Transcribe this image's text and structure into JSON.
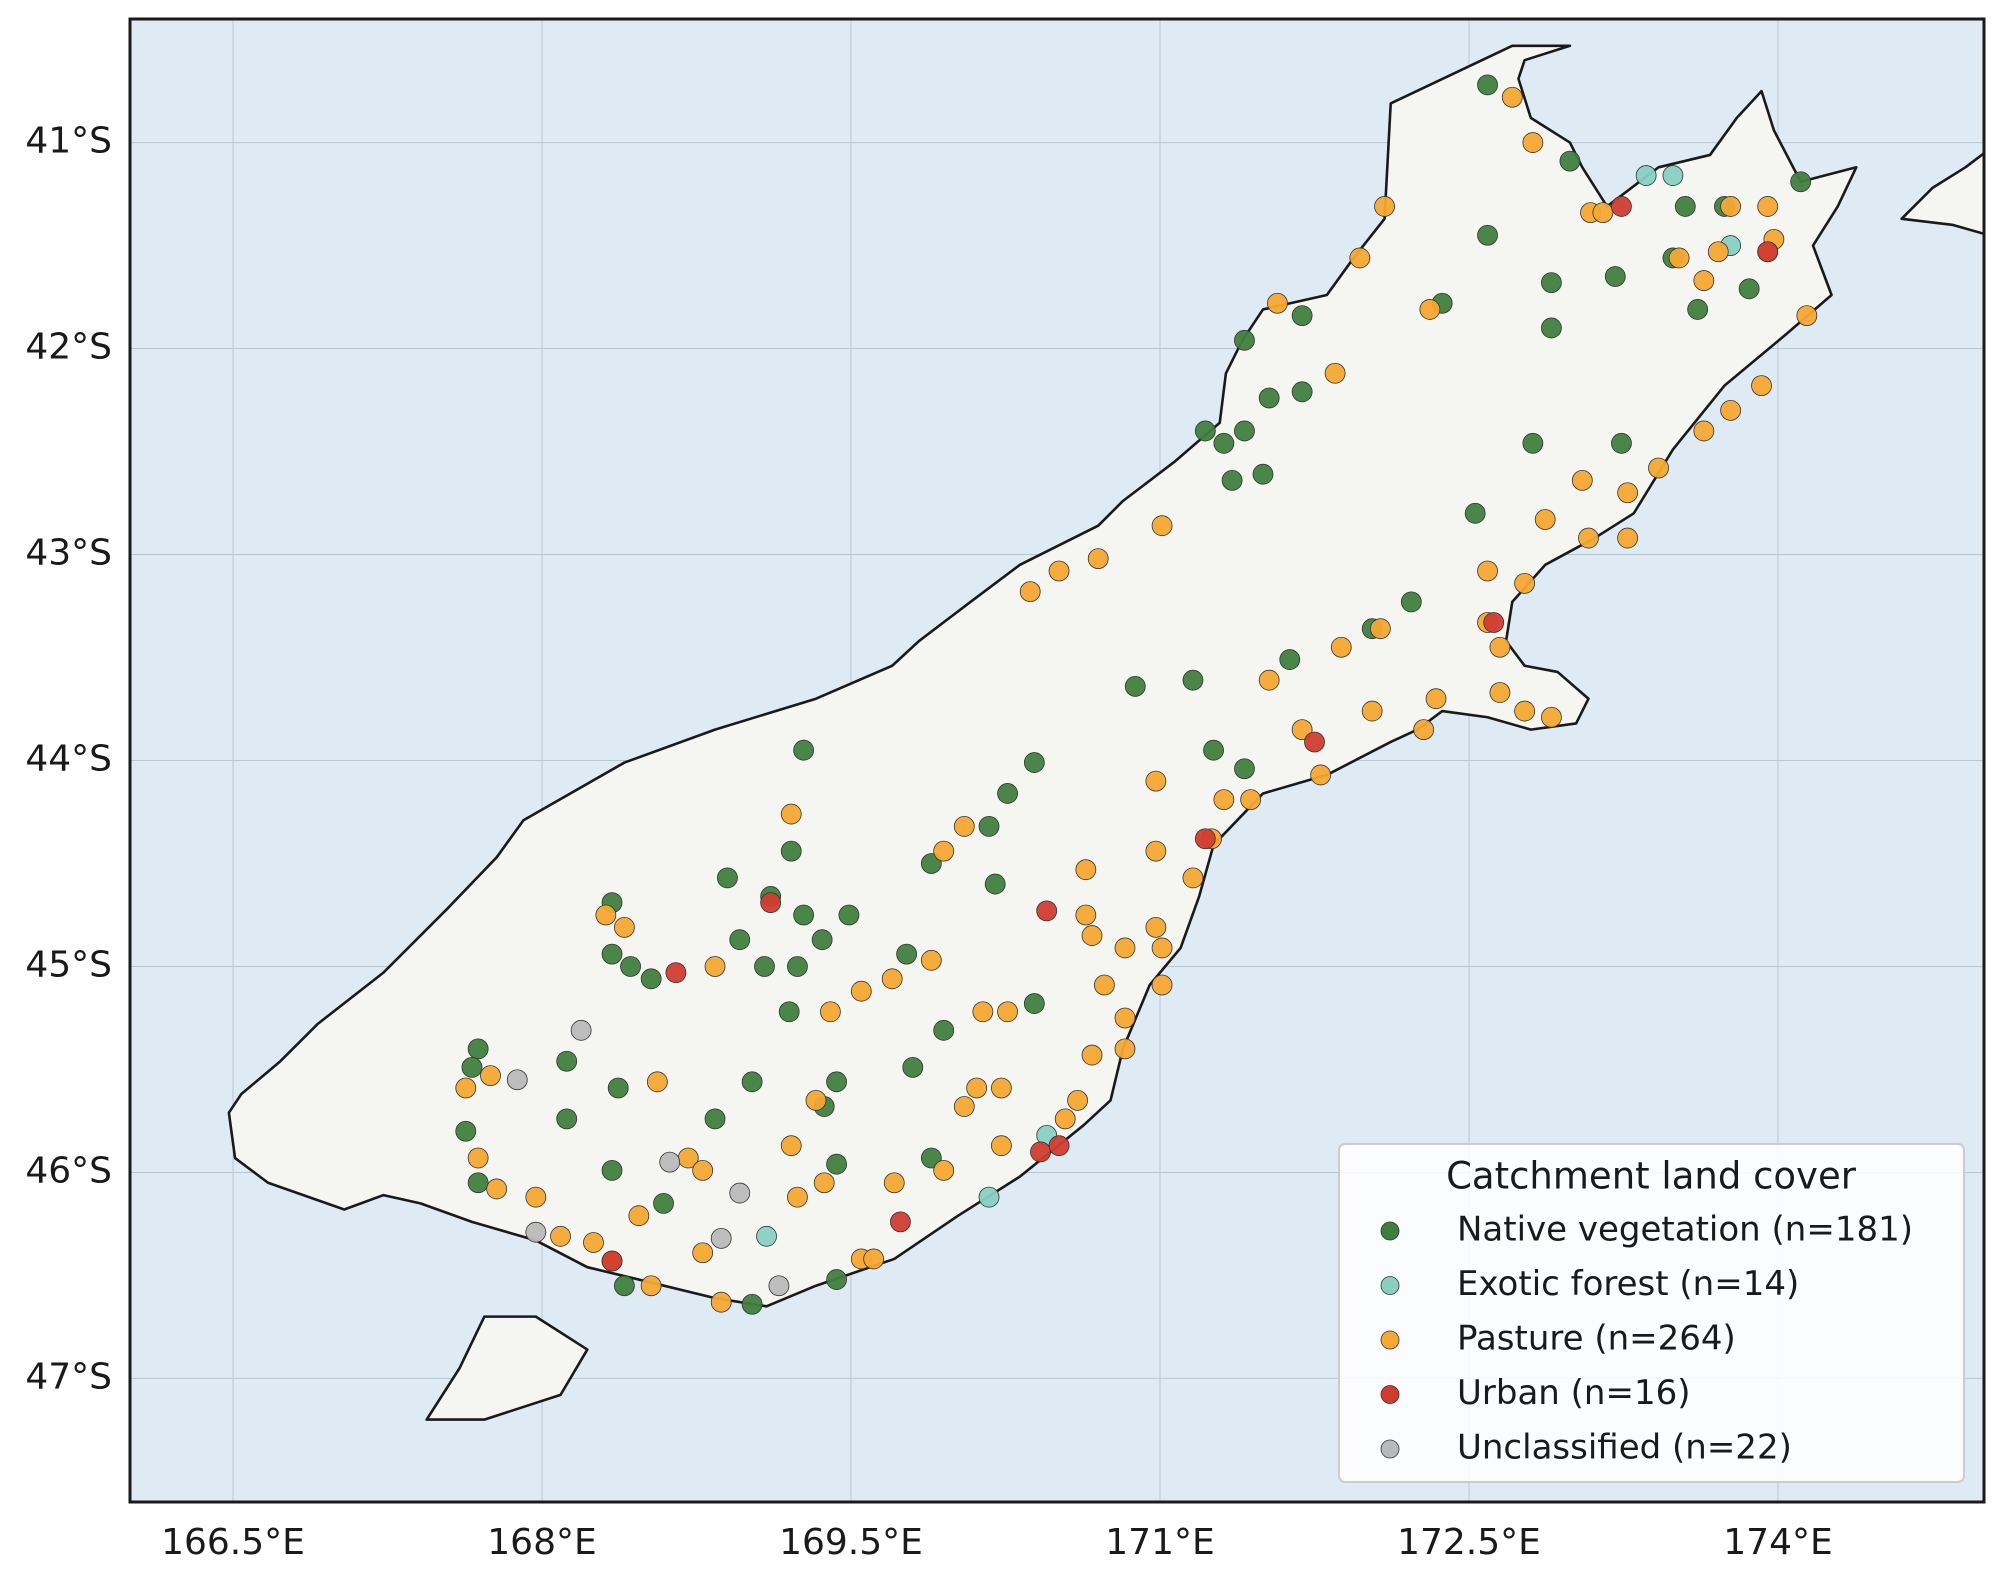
{
  "chart_data": {
    "type": "scatter",
    "legend_title": "Catchment land cover",
    "legend_position": "lower right",
    "grid": true,
    "xlim": [
      166.0,
      175.0
    ],
    "ylim": [
      -47.6,
      -40.4
    ],
    "xticks": [
      {
        "value": 166.5,
        "label": "166.5°E"
      },
      {
        "value": 168,
        "label": "168°E"
      },
      {
        "value": 169.5,
        "label": "169.5°E"
      },
      {
        "value": 171,
        "label": "171°E"
      },
      {
        "value": 172.5,
        "label": "172.5°E"
      },
      {
        "value": 174,
        "label": "174°E"
      }
    ],
    "yticks": [
      {
        "value": -41,
        "label": "41°S"
      },
      {
        "value": -42,
        "label": "42°S"
      },
      {
        "value": -43,
        "label": "43°S"
      },
      {
        "value": -44,
        "label": "44°S"
      },
      {
        "value": -45,
        "label": "45°S"
      },
      {
        "value": -46,
        "label": "46°S"
      },
      {
        "value": -47,
        "label": "47°S"
      }
    ],
    "series": [
      {
        "name": "Native vegetation (n=181)",
        "color": "#3f7f3d",
        "x": [
          172.59,
          172.99,
          173.55,
          173.74,
          174.11,
          172.59,
          172.9,
          173.21,
          173.49,
          173.61,
          173.86,
          172.9,
          172.37,
          171.41,
          171.69,
          171.53,
          171.69,
          171.22,
          171.31,
          171.41,
          171.35,
          171.5,
          172.81,
          173.24,
          172.53,
          172.22,
          172.03,
          171.63,
          170.88,
          171.16,
          171.26,
          171.41,
          170.39,
          170.26,
          170.17,
          169.89,
          170.2,
          169.27,
          169.21,
          169.11,
          168.9,
          169.49,
          169.27,
          168.96,
          169.08,
          169.24,
          168.34,
          168.34,
          168.43,
          168.53,
          169.36,
          169.77,
          169.95,
          170.39,
          169.2,
          168.12,
          167.69,
          167.66,
          167.63,
          167.69,
          168.12,
          168.37,
          168.34,
          168.84,
          169.02,
          169.43,
          169.37,
          169.43,
          169.8,
          169.89,
          168.4,
          169.02,
          169.43,
          168.59
        ],
        "values": [
          -40.72,
          -41.09,
          -41.31,
          -41.31,
          -41.19,
          -41.45,
          -41.68,
          -41.65,
          -41.56,
          -41.81,
          -41.71,
          -41.9,
          -41.78,
          -41.96,
          -41.84,
          -42.24,
          -42.21,
          -42.4,
          -42.46,
          -42.4,
          -42.64,
          -42.61,
          -42.46,
          -42.46,
          -42.8,
          -43.23,
          -43.36,
          -43.51,
          -43.64,
          -43.61,
          -43.95,
          -44.04,
          -44.01,
          -44.16,
          -44.32,
          -44.5,
          -44.6,
          -43.95,
          -44.44,
          -44.66,
          -44.57,
          -44.75,
          -44.75,
          -44.87,
          -45.0,
          -45.0,
          -44.69,
          -44.94,
          -45.0,
          -45.06,
          -44.87,
          -44.94,
          -45.31,
          -45.18,
          -45.22,
          -45.46,
          -45.4,
          -45.49,
          -45.8,
          -46.05,
          -45.74,
          -45.59,
          -45.99,
          -45.74,
          -45.56,
          -45.56,
          -45.68,
          -45.96,
          -45.49,
          -45.93,
          -46.55,
          -46.64,
          -46.52,
          -46.15
        ]
      },
      {
        "name": "Exotic forest (n=14)",
        "color": "#88cfc2",
        "x": [
          173.36,
          173.49,
          173.77,
          170.45,
          170.17,
          169.09
        ],
        "values": [
          -41.16,
          -41.16,
          -41.5,
          -45.82,
          -46.12,
          -46.31
        ]
      },
      {
        "name": "Pasture (n=264)",
        "color": "#f5a833",
        "x": [
          172.71,
          172.81,
          173.09,
          173.15,
          173.77,
          173.95,
          173.98,
          173.52,
          173.71,
          173.95,
          173.64,
          172.31,
          172.09,
          171.97,
          171.57,
          171.85,
          173.92,
          174.14,
          173.77,
          173.64,
          173.42,
          173.27,
          173.05,
          172.87,
          173.08,
          173.27,
          172.59,
          172.77,
          172.59,
          172.65,
          171.88,
          172.07,
          172.03,
          172.34,
          172.28,
          172.65,
          172.9,
          172.77,
          171.53,
          171.69,
          171.78,
          171.31,
          171.44,
          171.25,
          171.16,
          170.98,
          170.98,
          171.01,
          170.7,
          170.51,
          170.37,
          170.05,
          169.95,
          170.64,
          170.64,
          170.67,
          170.83,
          170.98,
          171.01,
          170.73,
          170.83,
          171.01,
          170.67,
          170.83,
          170.6,
          170.54,
          170.26,
          170.14,
          170.23,
          170.11,
          170.05,
          170.23,
          169.95,
          169.7,
          169.89,
          169.4,
          169.55,
          169.21,
          168.84,
          168.31,
          168.4,
          167.75,
          167.63,
          167.69,
          167.78,
          167.97,
          168.09,
          168.25,
          168.34,
          168.53,
          168.78,
          168.87,
          168.47,
          168.56,
          168.71,
          168.78,
          169.21,
          169.33,
          169.24,
          169.37,
          169.55,
          169.71,
          169.61
        ],
        "values": [
          -40.78,
          -41.0,
          -41.34,
          -41.34,
          -41.31,
          -41.31,
          -41.47,
          -41.56,
          -41.53,
          -41.53,
          -41.67,
          -41.81,
          -41.31,
          -41.56,
          -41.78,
          -42.12,
          -42.18,
          -41.84,
          -42.3,
          -42.4,
          -42.58,
          -42.7,
          -42.64,
          -42.83,
          -42.92,
          -42.92,
          -43.08,
          -43.14,
          -43.33,
          -43.45,
          -43.45,
          -43.36,
          -43.76,
          -43.7,
          -43.85,
          -43.67,
          -43.79,
          -43.76,
          -43.61,
          -43.85,
          -44.07,
          -44.19,
          -44.19,
          -44.38,
          -44.57,
          -44.44,
          -44.1,
          -42.86,
          -43.02,
          -43.08,
          -43.18,
          -44.32,
          -44.44,
          -44.53,
          -44.75,
          -44.85,
          -44.91,
          -44.81,
          -44.91,
          -45.09,
          -45.25,
          -45.09,
          -45.43,
          -45.4,
          -45.65,
          -45.74,
          -45.22,
          -45.22,
          -45.59,
          -45.59,
          -45.68,
          -45.87,
          -45.99,
          -45.06,
          -44.97,
          -45.22,
          -45.12,
          -44.26,
          -45.0,
          -44.75,
          -44.81,
          -45.53,
          -45.59,
          -45.93,
          -46.08,
          -46.12,
          -46.31,
          -46.34,
          -46.43,
          -46.55,
          -46.39,
          -46.63,
          -46.21,
          -45.56,
          -45.93,
          -45.99,
          -45.87,
          -45.65,
          -46.12,
          -46.05,
          -46.42,
          -46.05,
          -46.42
        ]
      },
      {
        "name": "Urban (n=16)",
        "color": "#d13c30",
        "x": [
          173.24,
          173.95,
          172.62,
          171.75,
          171.22,
          170.45,
          169.11,
          168.65,
          169.74,
          170.42,
          170.51,
          168.34
        ],
        "values": [
          -41.31,
          -41.53,
          -43.33,
          -43.91,
          -44.38,
          -44.73,
          -44.69,
          -45.03,
          -46.24,
          -45.9,
          -45.87,
          -46.43
        ]
      },
      {
        "name": "Unclassified (n=22)",
        "color": "#b9b9b9",
        "x": [
          168.19,
          167.88,
          168.62,
          168.96,
          168.87,
          169.15,
          167.97
        ],
        "values": [
          -45.31,
          -45.55,
          -45.95,
          -46.1,
          -46.32,
          -46.55,
          -46.29
        ]
      }
    ]
  }
}
